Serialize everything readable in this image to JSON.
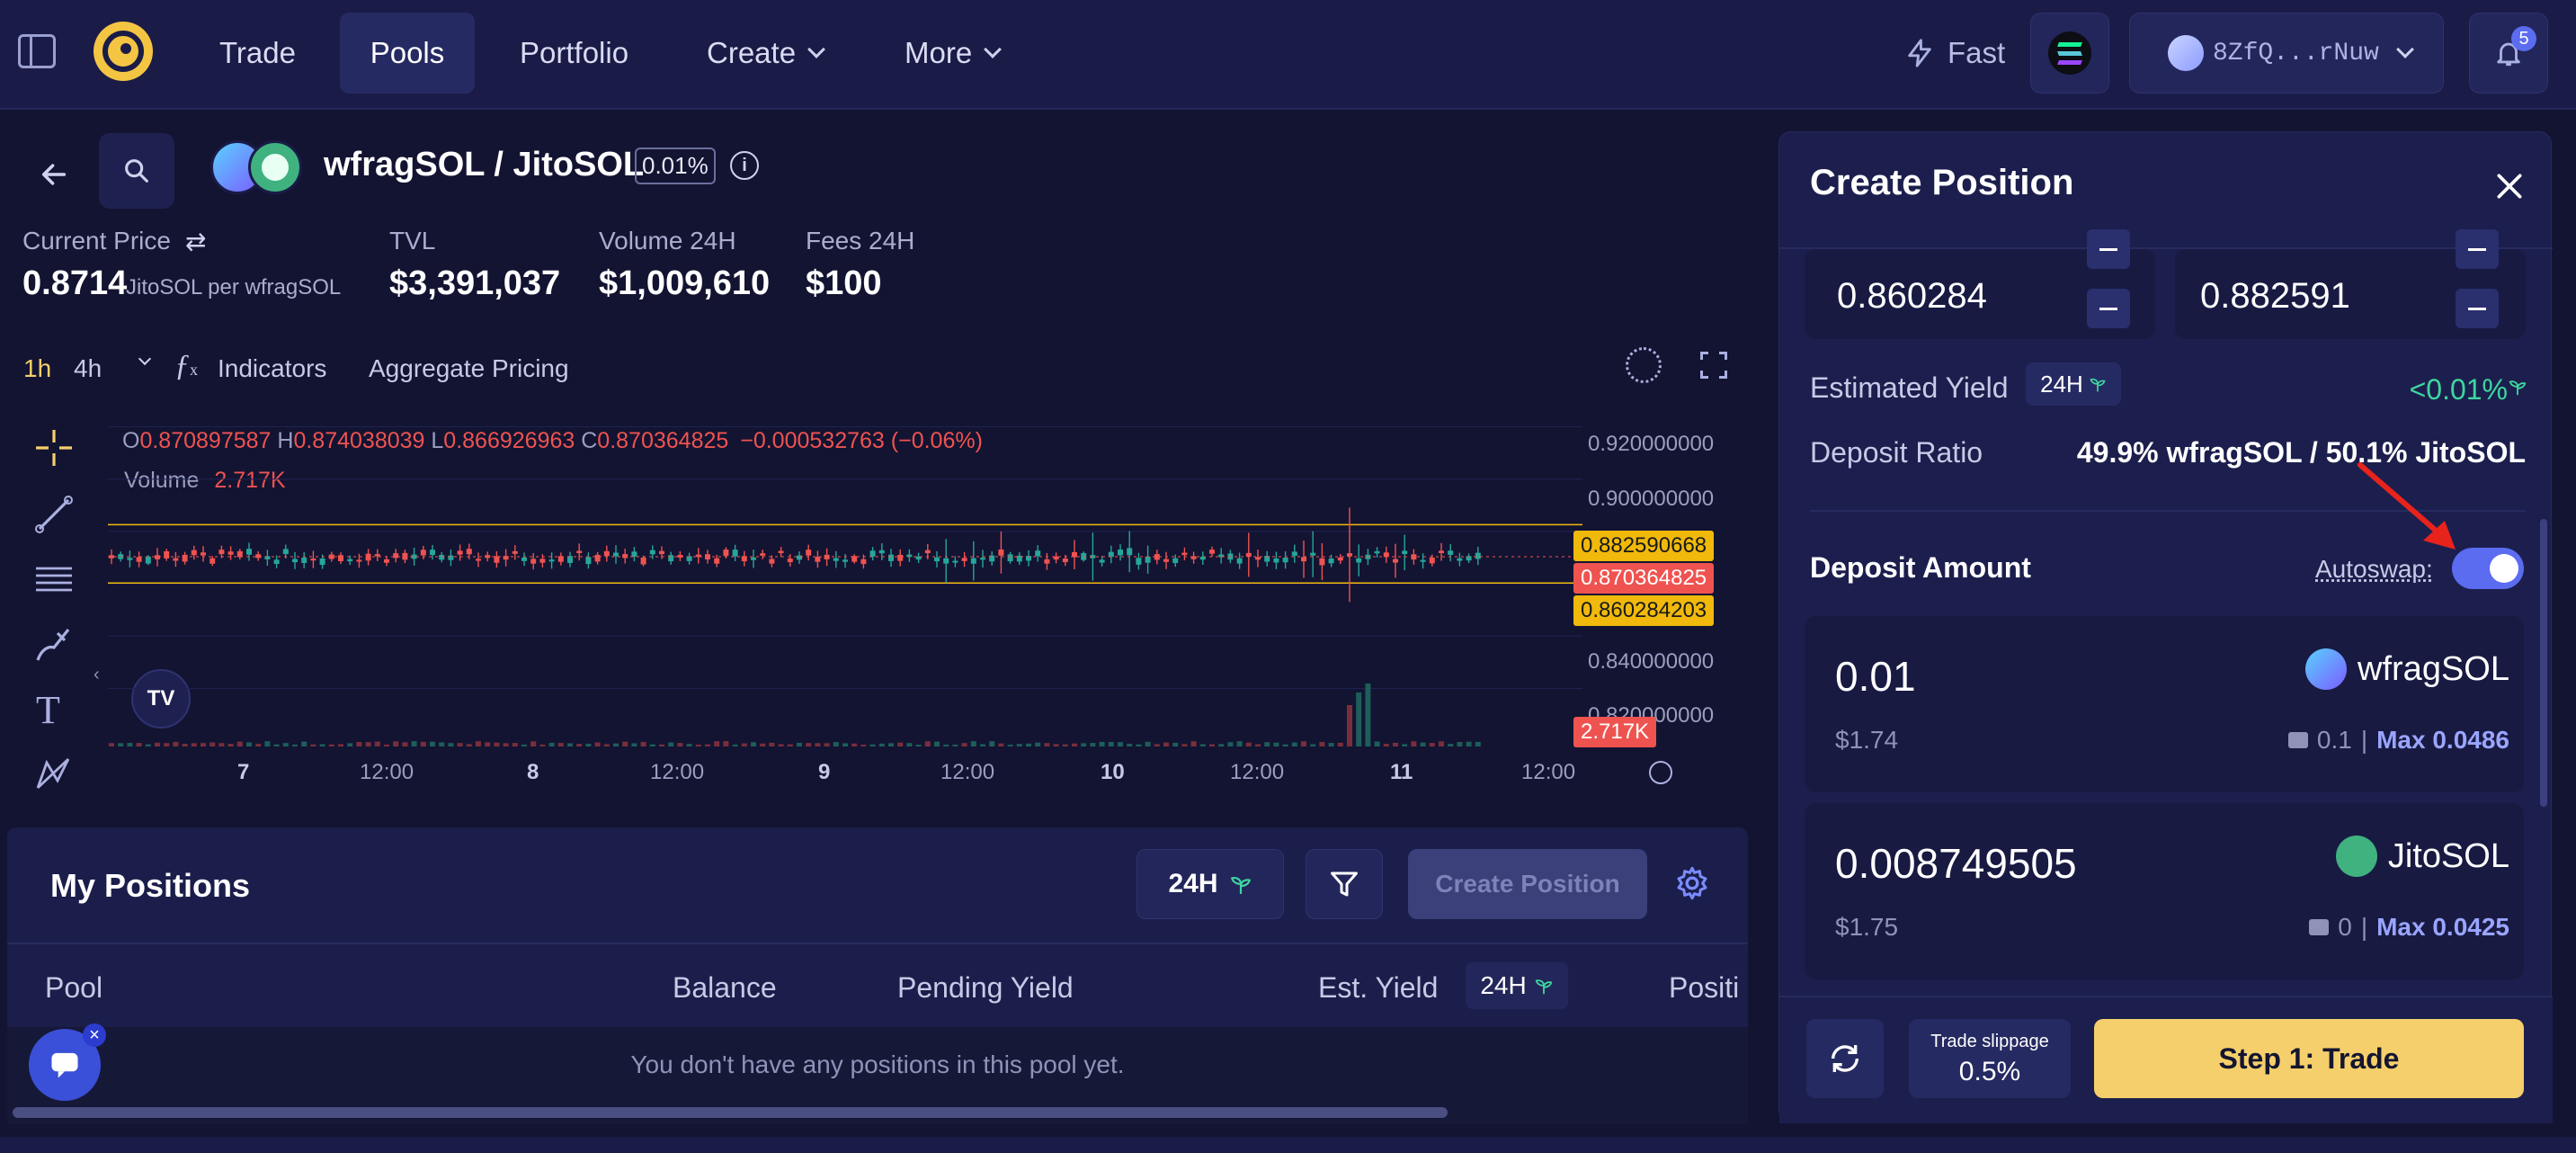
{
  "nav": {
    "items": [
      {
        "label": "Trade"
      },
      {
        "label": "Pools"
      },
      {
        "label": "Portfolio"
      },
      {
        "label": "Create"
      },
      {
        "label": "More"
      }
    ],
    "fast_label": "Fast",
    "wallet_address": "8ZfQ...rNuw",
    "notifications_count": "5"
  },
  "pool": {
    "pair": "wfragSOL / JitoSOL",
    "fee": "0.01%",
    "stats": {
      "current_price_label": "Current Price",
      "current_price_value": "0.8714",
      "current_price_unit": "JitoSOL per wfragSOL",
      "tvl_label": "TVL",
      "tvl_value": "$3,391,037",
      "volume_label": "Volume 24H",
      "volume_value": "$1,009,610",
      "fees_label": "Fees 24H",
      "fees_value": "$100"
    }
  },
  "chart_toolbar": {
    "tf_1h": "1h",
    "tf_4h": "4h",
    "indicators": "Indicators",
    "aggregate": "Aggregate Pricing"
  },
  "chart_data": {
    "type": "candlestick",
    "ohlc_legend": {
      "o_label": "O",
      "o": "0.870897587",
      "h_label": "H",
      "h": "0.874038039",
      "l_label": "L",
      "l": "0.866926963",
      "c_label": "C",
      "c": "0.870364825",
      "change": "−0.000532763 (−0.06%)"
    },
    "volume_label": "Volume",
    "volume_value": "2.717K",
    "y_ticks": [
      "0.920000000",
      "0.900000000",
      "0.882590668",
      "0.870364825",
      "0.860284203",
      "0.840000000",
      "0.820000000"
    ],
    "price_tags": {
      "upper": "0.882590668",
      "last": "0.870364825",
      "lower": "0.860284203",
      "volume": "2.717K"
    },
    "x_ticks": [
      "7",
      "12:00",
      "8",
      "12:00",
      "9",
      "12:00",
      "10",
      "12:00",
      "11",
      "12:00"
    ],
    "ylim": [
      0.815,
      0.925
    ],
    "range_upper": 0.882591,
    "range_lower": 0.860284,
    "last_price": 0.870365,
    "colors": {
      "up": "#26a69a",
      "down": "#ef5350",
      "range": "#f0b90b"
    }
  },
  "positions": {
    "title": "My Positions",
    "period": "24H",
    "create_button": "Create Position",
    "columns": [
      "Pool",
      "Balance",
      "Pending Yield",
      "Est. Yield",
      "Positi"
    ],
    "est_yield_period": "24H",
    "empty": "You don't have any positions in this pool yet."
  },
  "create_position": {
    "title": "Create Position",
    "min_price": "0.860284",
    "max_price": "0.882591",
    "estimated_yield_label": "Estimated Yield",
    "estimated_yield_period": "24H",
    "estimated_yield_value": "<0.01%",
    "deposit_ratio_label": "Deposit Ratio",
    "deposit_ratio_value": "49.9% wfragSOL / 50.1% JitoSOL",
    "deposit_amount_label": "Deposit Amount",
    "autoswap_label": "Autoswap:",
    "autoswap_on": true,
    "token_a": {
      "amount": "0.01",
      "usd": "$1.74",
      "symbol": "wfragSOL",
      "balance": "0.1",
      "max": "Max 0.0486"
    },
    "token_b": {
      "amount": "0.008749505",
      "usd": "$1.75",
      "symbol": "JitoSOL",
      "balance": "0",
      "max": "Max 0.0425"
    },
    "slippage_label": "Trade slippage",
    "slippage_value": "0.5%",
    "step_button": "Step 1: Trade"
  },
  "colors": {
    "accent_yellow": "#f5cf6b",
    "toggle_blue": "#5b6cf0",
    "green": "#3ed6a0",
    "red": "#ef5350"
  }
}
